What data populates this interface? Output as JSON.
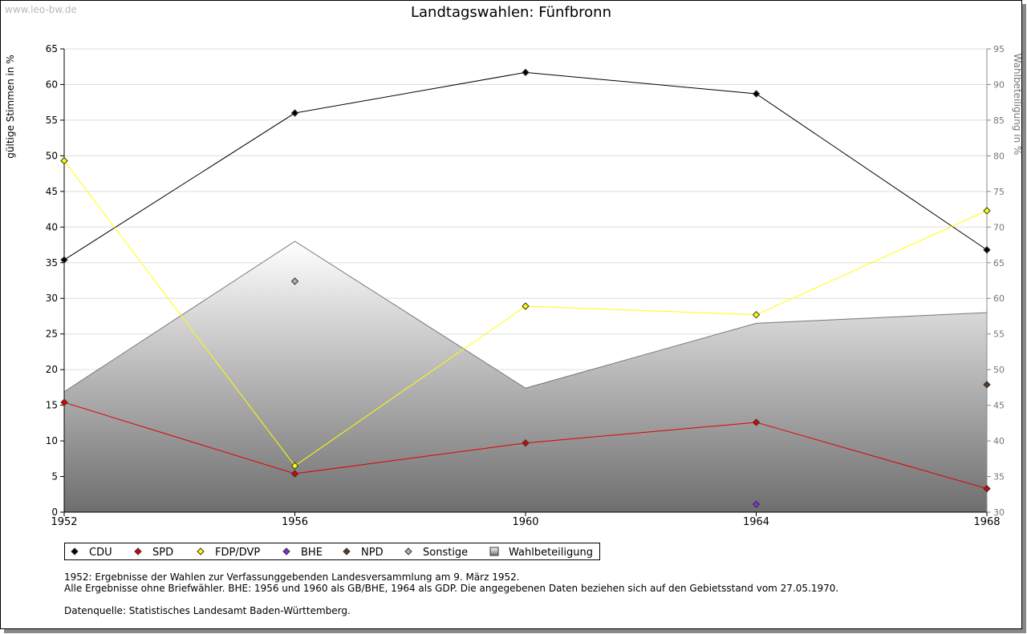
{
  "watermark": "www.leo-bw.de",
  "chart_data": {
    "type": "line",
    "title": "Landtagswahlen: Fünfbronn",
    "ylabel": "gültige Stimmen in %",
    "y2label": "Wahlbeteiligung in %",
    "xlabel": "",
    "x": [
      1952,
      1956,
      1960,
      1964,
      1968
    ],
    "xticks": [
      "1952",
      "1956",
      "1960",
      "1964",
      "1968"
    ],
    "ylim": [
      0,
      65
    ],
    "yticks": [
      0,
      5,
      10,
      15,
      20,
      25,
      30,
      35,
      40,
      45,
      50,
      55,
      60,
      65
    ],
    "y2lim": [
      30,
      95
    ],
    "y2ticks": [
      30,
      35,
      40,
      45,
      50,
      55,
      60,
      65,
      70,
      75,
      80,
      85,
      90,
      95
    ],
    "grid": true,
    "legend_position": "bottom-left",
    "series": [
      {
        "name": "CDU",
        "color": "#000000",
        "values": [
          35.4,
          56.0,
          61.7,
          58.7,
          36.8
        ]
      },
      {
        "name": "SPD",
        "color": "#e00000",
        "values": [
          15.4,
          5.4,
          9.7,
          12.6,
          3.3
        ]
      },
      {
        "name": "FDP/DVP",
        "color": "#ffff00",
        "values": [
          49.3,
          6.5,
          28.9,
          27.7,
          42.3
        ]
      },
      {
        "name": "BHE",
        "color": "#8a2be2",
        "values": [
          null,
          null,
          null,
          1.1,
          null
        ]
      },
      {
        "name": "NPD",
        "color": "#5a3a22",
        "values": [
          null,
          null,
          null,
          null,
          17.9
        ]
      },
      {
        "name": "Sonstige",
        "color": "#b0b0b0",
        "values": [
          null,
          32.4,
          null,
          null,
          null
        ]
      }
    ],
    "area_series": {
      "name": "Wahlbeteiligung",
      "axis": "right",
      "color": "#a0a0a0",
      "values": [
        46.9,
        68.0,
        47.4,
        56.5,
        58.0
      ]
    }
  },
  "notes": [
    "1952: Ergebnisse der Wahlen zur Verfassunggebenden Landesversammlung am 9. März 1952.",
    "Alle Ergebnisse ohne Briefwähler. BHE: 1956 und 1960 als GB/BHE, 1964 als GDP. Die angegebenen Daten beziehen sich auf den Gebietsstand vom 27.05.1970.",
    "",
    "Datenquelle: Statistisches Landesamt Baden-Württemberg."
  ]
}
